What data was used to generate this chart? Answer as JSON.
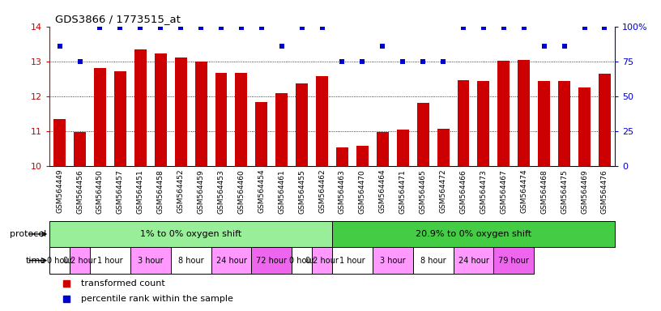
{
  "title": "GDS3866 / 1773515_at",
  "samples": [
    "GSM564449",
    "GSM564456",
    "GSM564450",
    "GSM564457",
    "GSM564451",
    "GSM564458",
    "GSM564452",
    "GSM564459",
    "GSM564453",
    "GSM564460",
    "GSM564454",
    "GSM564461",
    "GSM564455",
    "GSM564462",
    "GSM564463",
    "GSM564470",
    "GSM564464",
    "GSM564471",
    "GSM564465",
    "GSM564472",
    "GSM564466",
    "GSM564473",
    "GSM564467",
    "GSM564474",
    "GSM564468",
    "GSM564475",
    "GSM564469",
    "GSM564476"
  ],
  "bar_values": [
    11.35,
    10.98,
    12.82,
    12.72,
    13.35,
    13.22,
    13.12,
    13.0,
    12.67,
    12.68,
    11.85,
    12.1,
    12.37,
    12.58,
    10.55,
    10.6,
    10.98,
    11.05,
    11.82,
    11.08,
    12.47,
    12.45,
    13.03,
    13.05,
    12.45,
    12.45,
    12.25,
    12.65
  ],
  "percentile_values": [
    86,
    75,
    99,
    99,
    99,
    99,
    99,
    99,
    99,
    99,
    99,
    86,
    99,
    99,
    75,
    75,
    86,
    75,
    75,
    75,
    99,
    99,
    99,
    99,
    86,
    86,
    99,
    99
  ],
  "bar_color": "#cc0000",
  "dot_color": "#0000cc",
  "ylim_left": [
    10,
    14
  ],
  "ylim_right": [
    0,
    100
  ],
  "yticks_left": [
    10,
    11,
    12,
    13,
    14
  ],
  "yticks_right": [
    0,
    25,
    50,
    75,
    100
  ],
  "group_colors": [
    "#99ee99",
    "#44cc44"
  ],
  "group_labels": [
    "1% to 0% oxygen shift",
    "20.9% to 0% oxygen shift"
  ],
  "group_starts": [
    0,
    14
  ],
  "group_ends": [
    14,
    28
  ],
  "time_widths": [
    1,
    1,
    2,
    2,
    2,
    2,
    2,
    1,
    1,
    2,
    2,
    2,
    2,
    2
  ],
  "time_colors": [
    "#ffffff",
    "#ff99ff",
    "#ffffff",
    "#ff99ff",
    "#ffffff",
    "#ff99ff",
    "#ee66ee",
    "#ffffff",
    "#ff99ff",
    "#ffffff",
    "#ff99ff",
    "#ffffff",
    "#ff99ff",
    "#ee66ee"
  ],
  "time_labels": [
    "0 hour",
    "0.2 hour",
    "1 hour",
    "3 hour",
    "8 hour",
    "24 hour",
    "72 hour",
    "0 hour",
    "0.2 hour",
    "1 hour",
    "3 hour",
    "8 hour",
    "24 hour",
    "79 hour"
  ],
  "legend_items": [
    {
      "label": "transformed count",
      "color": "#cc0000"
    },
    {
      "label": "percentile rank within the sample",
      "color": "#0000cc"
    }
  ],
  "protocol_label": "protocol",
  "time_label": "time",
  "label_area_color": "#dddddd"
}
